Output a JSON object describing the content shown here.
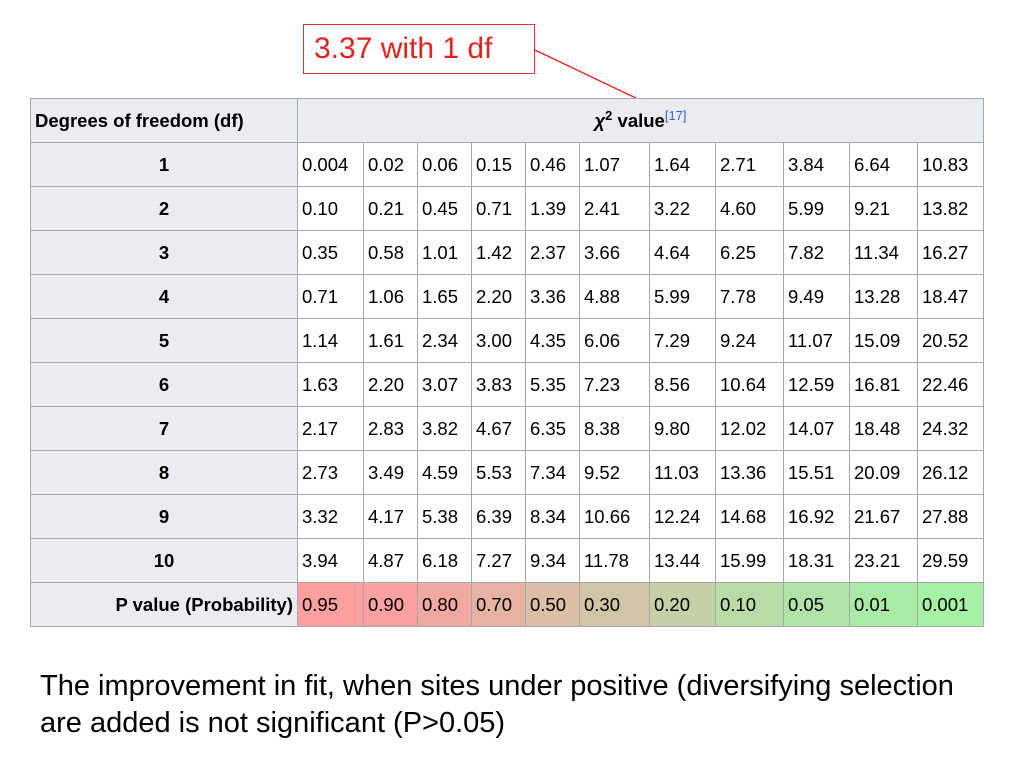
{
  "callout": {
    "text": "3.37 with 1 df"
  },
  "table": {
    "df_header": "Degrees of freedom (df)",
    "chi_header": {
      "symbol": "χ",
      "power": "2",
      "word": " value",
      "ref": "[17]"
    },
    "rows": [
      {
        "df": "1",
        "values": [
          "0.004",
          "0.02",
          "0.06",
          "0.15",
          "0.46",
          "1.07",
          "1.64",
          "2.71",
          "3.84",
          "6.64",
          "10.83"
        ]
      },
      {
        "df": "2",
        "values": [
          "0.10",
          "0.21",
          "0.45",
          "0.71",
          "1.39",
          "2.41",
          "3.22",
          "4.60",
          "5.99",
          "9.21",
          "13.82"
        ]
      },
      {
        "df": "3",
        "values": [
          "0.35",
          "0.58",
          "1.01",
          "1.42",
          "2.37",
          "3.66",
          "4.64",
          "6.25",
          "7.82",
          "11.34",
          "16.27"
        ]
      },
      {
        "df": "4",
        "values": [
          "0.71",
          "1.06",
          "1.65",
          "2.20",
          "3.36",
          "4.88",
          "5.99",
          "7.78",
          "9.49",
          "13.28",
          "18.47"
        ]
      },
      {
        "df": "5",
        "values": [
          "1.14",
          "1.61",
          "2.34",
          "3.00",
          "4.35",
          "6.06",
          "7.29",
          "9.24",
          "11.07",
          "15.09",
          "20.52"
        ]
      },
      {
        "df": "6",
        "values": [
          "1.63",
          "2.20",
          "3.07",
          "3.83",
          "5.35",
          "7.23",
          "8.56",
          "10.64",
          "12.59",
          "16.81",
          "22.46"
        ]
      },
      {
        "df": "7",
        "values": [
          "2.17",
          "2.83",
          "3.82",
          "4.67",
          "6.35",
          "8.38",
          "9.80",
          "12.02",
          "14.07",
          "18.48",
          "24.32"
        ]
      },
      {
        "df": "8",
        "values": [
          "2.73",
          "3.49",
          "4.59",
          "5.53",
          "7.34",
          "9.52",
          "11.03",
          "13.36",
          "15.51",
          "20.09",
          "26.12"
        ]
      },
      {
        "df": "9",
        "values": [
          "3.32",
          "4.17",
          "5.38",
          "6.39",
          "8.34",
          "10.66",
          "12.24",
          "14.68",
          "16.92",
          "21.67",
          "27.88"
        ]
      },
      {
        "df": "10",
        "values": [
          "3.94",
          "4.87",
          "6.18",
          "7.27",
          "9.34",
          "11.78",
          "13.44",
          "15.99",
          "18.31",
          "23.21",
          "29.59"
        ]
      }
    ],
    "p_label": "P value (Probability)",
    "p_values": [
      "0.95",
      "0.90",
      "0.80",
      "0.70",
      "0.50",
      "0.30",
      "0.20",
      "0.10",
      "0.05",
      "0.01",
      "0.001"
    ],
    "p_colors": [
      "#ff9f9f",
      "#fba0a0",
      "#f0a8a0",
      "#e6b3a2",
      "#dbbea4",
      "#d0c6a6",
      "#c5d0a6",
      "#b9dba6",
      "#b0e3a6",
      "#a9eaa5",
      "#a5f2a5"
    ]
  },
  "caption": "The improvement in fit, when sites under positive (diversifying selection are added is not significant (P>0.05)"
}
